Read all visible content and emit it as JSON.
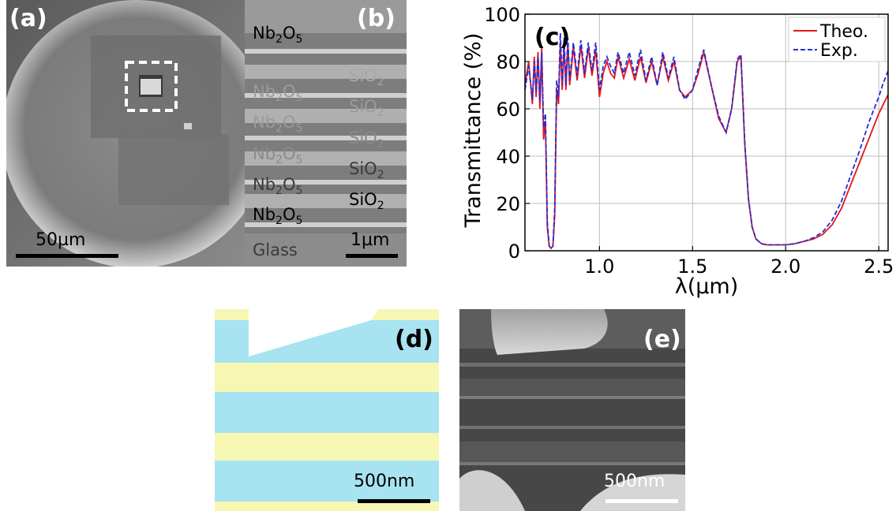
{
  "panel_a": {
    "label": "(a)",
    "scale_label": "50µm"
  },
  "panel_b": {
    "label": "(b)",
    "scale_label": "1µm",
    "layers_left": [
      "Nb",
      "Nb",
      "Nb",
      "Nb",
      "Nb",
      "Nb"
    ],
    "layers_right": [
      "SiO",
      "SiO",
      "SiO",
      "SiO",
      "SiO"
    ],
    "nb_formula": {
      "a": "Nb",
      "s1": "2",
      "b": "O",
      "s2": "5"
    },
    "sio_formula": {
      "a": "SiO",
      "s1": "2"
    },
    "glass_label": "Glass"
  },
  "panel_c": {
    "label": "(c)"
  },
  "panel_d": {
    "label": "(d)",
    "scale_label": "500nm",
    "colors": {
      "blue": "#a7e3f0",
      "yellow": "#f7f7b4"
    }
  },
  "panel_e": {
    "label": "(e)",
    "scale_label": "500nm"
  },
  "chart_data": {
    "type": "line",
    "title": "",
    "xlabel": "λ(µm)",
    "ylabel": "Transmittance (%)",
    "xlim": [
      0.6,
      2.55
    ],
    "ylim": [
      0,
      100
    ],
    "xticks": [
      1.0,
      1.5,
      2.0,
      2.5
    ],
    "xtick_labels": [
      "1.0",
      "1.5",
      "2.0",
      "2.5"
    ],
    "yticks": [
      0,
      20,
      40,
      60,
      80,
      100
    ],
    "ytick_labels": [
      "0",
      "20",
      "40",
      "60",
      "80",
      "100"
    ],
    "grid": true,
    "legend_position": "top-right",
    "series": [
      {
        "name": "Theo.",
        "color": "#e8141b",
        "style": "solid",
        "x": [
          0.6,
          0.62,
          0.64,
          0.65,
          0.66,
          0.67,
          0.68,
          0.69,
          0.7,
          0.71,
          0.72,
          0.73,
          0.74,
          0.75,
          0.76,
          0.77,
          0.78,
          0.79,
          0.8,
          0.81,
          0.82,
          0.83,
          0.84,
          0.86,
          0.88,
          0.9,
          0.92,
          0.94,
          0.96,
          0.98,
          1.0,
          1.02,
          1.04,
          1.06,
          1.08,
          1.1,
          1.13,
          1.16,
          1.19,
          1.22,
          1.25,
          1.28,
          1.31,
          1.34,
          1.37,
          1.4,
          1.43,
          1.46,
          1.5,
          1.53,
          1.56,
          1.6,
          1.64,
          1.68,
          1.71,
          1.74,
          1.76,
          1.78,
          1.8,
          1.82,
          1.84,
          1.87,
          1.9,
          1.95,
          2.0,
          2.05,
          2.1,
          2.15,
          2.2,
          2.25,
          2.3,
          2.35,
          2.4,
          2.45,
          2.5,
          2.55
        ],
        "y": [
          70,
          80,
          62,
          82,
          65,
          84,
          60,
          86,
          47,
          55,
          10,
          2,
          1,
          2,
          15,
          68,
          62,
          88,
          68,
          87,
          68,
          88,
          70,
          86,
          72,
          87,
          73,
          86,
          74,
          85,
          65,
          75,
          80,
          75,
          73,
          82,
          73,
          81,
          72,
          82,
          71,
          80,
          70,
          82,
          72,
          80,
          68,
          65,
          68,
          75,
          84,
          70,
          56,
          50,
          60,
          80,
          82,
          45,
          22,
          10,
          5,
          3,
          2.5,
          2.5,
          2.5,
          3,
          4,
          5,
          7,
          11,
          18,
          28,
          38,
          48,
          58,
          66
        ]
      },
      {
        "name": "Exp.",
        "color": "#1f2fd8",
        "style": "dashed",
        "x": [
          0.6,
          0.62,
          0.64,
          0.65,
          0.66,
          0.67,
          0.68,
          0.69,
          0.7,
          0.71,
          0.72,
          0.73,
          0.74,
          0.75,
          0.76,
          0.77,
          0.78,
          0.79,
          0.8,
          0.81,
          0.82,
          0.83,
          0.84,
          0.86,
          0.88,
          0.9,
          0.92,
          0.94,
          0.96,
          0.98,
          1.0,
          1.02,
          1.04,
          1.06,
          1.08,
          1.1,
          1.13,
          1.16,
          1.19,
          1.22,
          1.25,
          1.28,
          1.31,
          1.34,
          1.37,
          1.4,
          1.43,
          1.46,
          1.5,
          1.53,
          1.56,
          1.6,
          1.64,
          1.68,
          1.71,
          1.74,
          1.76,
          1.78,
          1.8,
          1.82,
          1.84,
          1.87,
          1.9,
          1.95,
          2.0,
          2.05,
          2.1,
          2.15,
          2.2,
          2.25,
          2.3,
          2.35,
          2.4,
          2.45,
          2.5,
          2.52,
          2.55
        ],
        "y": [
          68,
          78,
          64,
          80,
          67,
          82,
          63,
          84,
          52,
          58,
          12,
          2,
          1,
          2,
          18,
          72,
          65,
          92,
          70,
          90,
          70,
          90,
          72,
          88,
          74,
          89,
          75,
          88,
          76,
          88,
          68,
          78,
          82,
          78,
          75,
          84,
          75,
          84,
          74,
          85,
          72,
          82,
          70,
          84,
          73,
          82,
          68,
          64,
          68,
          77,
          85,
          70,
          57,
          50,
          60,
          81,
          83,
          46,
          22,
          10,
          5,
          3,
          2.5,
          2.5,
          2.5,
          3,
          4,
          5.5,
          8,
          13,
          21,
          32,
          43,
          55,
          65,
          70,
          76
        ]
      }
    ]
  }
}
